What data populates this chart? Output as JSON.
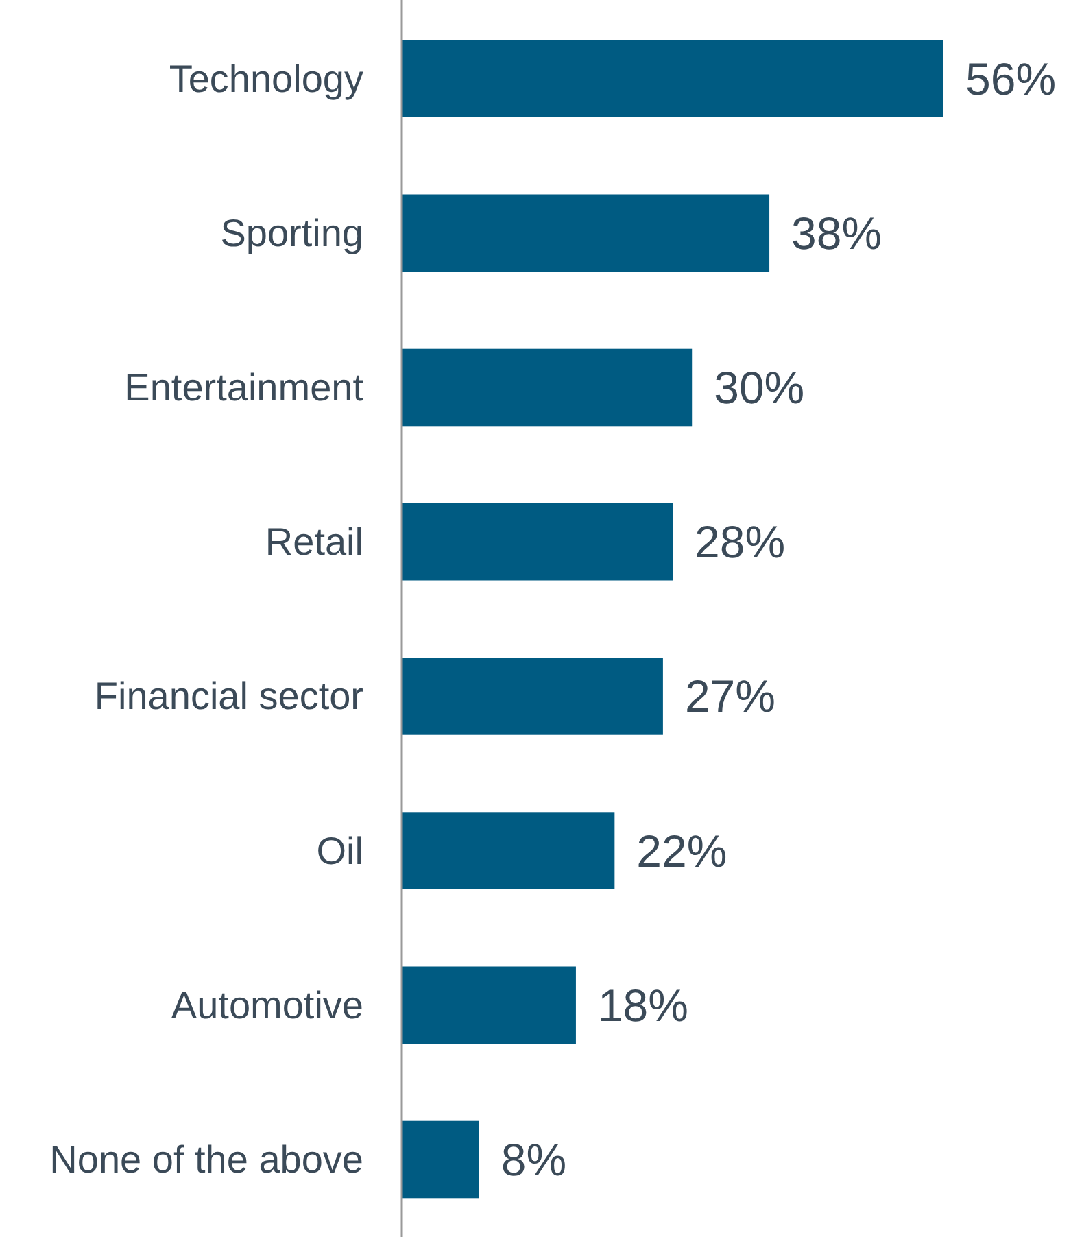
{
  "chart_data": {
    "type": "bar",
    "orientation": "horizontal",
    "categories": [
      "Technology",
      "Sporting",
      "Entertainment",
      "Retail",
      "Financial sector",
      "Oil",
      "Automotive",
      "None of the above"
    ],
    "values": [
      56,
      38,
      30,
      28,
      27,
      22,
      18,
      8
    ],
    "value_labels": [
      "56%",
      "38%",
      "30%",
      "28%",
      "27%",
      "22%",
      "18%",
      "8%"
    ],
    "color": "#005b82"
  }
}
